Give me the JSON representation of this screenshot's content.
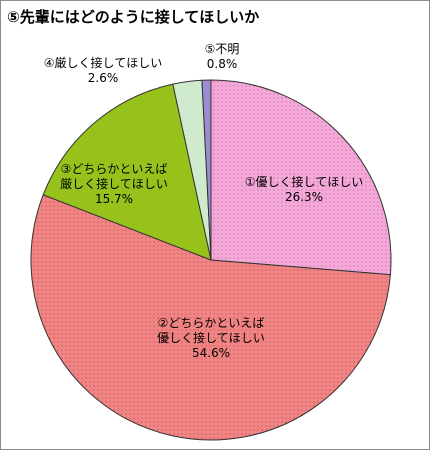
{
  "title": "⑤先輩にはどのように接してほしいか",
  "chart_data": {
    "type": "pie",
    "title": "⑤先輩にはどのように接してほしいか",
    "start": "12 o'clock",
    "direction": "clockwise",
    "slices": [
      {
        "label": "①優しく接してほしい",
        "value": 26.3,
        "value_label": "26.3%",
        "color": "#f5a9d8",
        "pattern": "dotted"
      },
      {
        "label": "②どちらかといえば優しく接してほしい",
        "value": 54.6,
        "value_label": "54.6%",
        "color": "#f18585",
        "pattern": "dotted"
      },
      {
        "label": "③どちらかといえば厳しく接してほしい",
        "value": 15.7,
        "value_label": "15.7%",
        "color": "#97c21c",
        "pattern": "none"
      },
      {
        "label": "④厳しく接してほしい",
        "value": 2.6,
        "value_label": "2.6%",
        "color": "#cfeacd",
        "pattern": "none"
      },
      {
        "label": "⑤不明",
        "value": 0.8,
        "value_label": "0.8%",
        "color": "#9b8cd3",
        "pattern": "none"
      }
    ],
    "label_lines": [
      [
        "①優しく接してほしい",
        "26.3%"
      ],
      [
        "②どちらかといえば",
        "優しく接してほしい",
        "54.6%"
      ],
      [
        "③どちらかといえば",
        "厳しく接してほしい",
        "15.7%"
      ],
      [
        "④厳しく接してほしい",
        "2.6%"
      ],
      [
        "⑤不明",
        "0.8%"
      ]
    ]
  }
}
